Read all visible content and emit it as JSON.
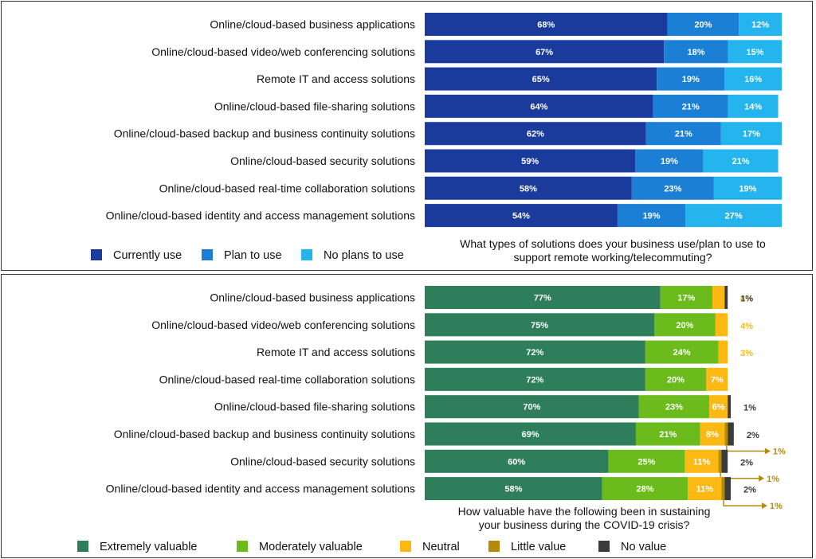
{
  "chart_data": [
    {
      "type": "bar",
      "orientation": "horizontal",
      "stacked": true,
      "title": "What types of solutions does your business use/plan to use to support remote working/telecommuting?",
      "title_lines": [
        "What types of solutions does your business use/plan to use to",
        "support remote working/telecommuting?"
      ],
      "categories": [
        "Online/cloud-based business applications",
        "Online/cloud-based video/web conferencing solutions",
        "Remote IT and access solutions",
        "Online/cloud-based file-sharing solutions",
        "Online/cloud-based backup and business continuity solutions",
        "Online/cloud-based security solutions",
        "Online/cloud-based real-time collaboration solutions",
        "Online/cloud-based identity and access management solutions"
      ],
      "series": [
        {
          "name": "Currently use",
          "color": "#1a3a9c",
          "values": [
            68,
            67,
            65,
            64,
            62,
            59,
            58,
            54
          ]
        },
        {
          "name": "Plan to use",
          "color": "#1b7fd6",
          "values": [
            20,
            18,
            19,
            21,
            21,
            19,
            23,
            19
          ]
        },
        {
          "name": "No plans to use",
          "color": "#25b5ee",
          "values": [
            12,
            15,
            16,
            14,
            17,
            21,
            19,
            27
          ]
        }
      ],
      "legend": "bottom-left",
      "xlim": [
        0,
        100
      ]
    },
    {
      "type": "bar",
      "orientation": "horizontal",
      "stacked": true,
      "title": "How valuable have the following been in sustaining your business during the COVID-19 crisis?",
      "title_lines": [
        "How valuable have the following been in sustaining",
        "your business during the COVID-19 crisis?"
      ],
      "categories": [
        "Online/cloud-based business applications",
        "Online/cloud-based video/web conferencing solutions",
        "Remote IT and access solutions",
        "Online/cloud-based real-time collaboration solutions",
        "Online/cloud-based file-sharing solutions",
        "Online/cloud-based backup and business continuity solutions",
        "Online/cloud-based security solutions",
        "Online/cloud-based identity and access management solutions"
      ],
      "series": [
        {
          "name": "Extremely valuable",
          "color": "#2e7d5b",
          "values": [
            77,
            75,
            72,
            72,
            70,
            69,
            60,
            58
          ]
        },
        {
          "name": "Moderately valuable",
          "color": "#6cbb1c",
          "values": [
            17,
            20,
            24,
            20,
            23,
            21,
            25,
            28
          ]
        },
        {
          "name": "Neutral",
          "color": "#fdb913",
          "values": [
            4,
            4,
            3,
            7,
            6,
            8,
            11,
            11
          ]
        },
        {
          "name": "Little value",
          "color": "#b58a0c",
          "values": [
            0,
            0,
            0,
            0,
            0,
            1,
            1,
            1
          ]
        },
        {
          "name": "No value",
          "color": "#3b3b3b",
          "values": [
            1,
            0,
            0,
            0,
            1,
            2,
            2,
            2
          ]
        }
      ],
      "legend": "bottom",
      "xlim": [
        0,
        100
      ]
    }
  ]
}
